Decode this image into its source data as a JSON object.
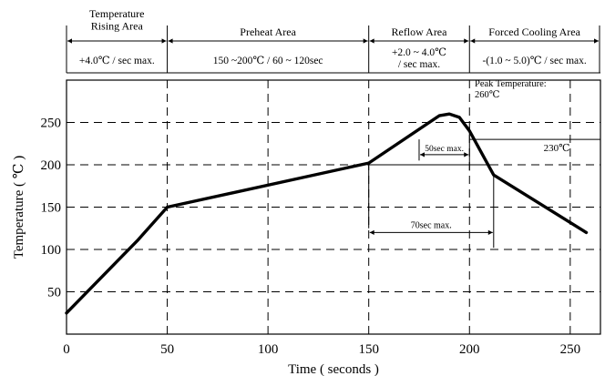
{
  "chart_data": {
    "type": "line",
    "ylabel": "Temperature ( ℃ )",
    "xlabel": "Time ( seconds )",
    "xlim": [
      0,
      265
    ],
    "ylim": [
      0,
      300
    ],
    "grid": true,
    "xticks": [
      0,
      50,
      100,
      150,
      200,
      250
    ],
    "yticks": [
      50,
      100,
      150,
      200,
      250
    ],
    "series": [
      {
        "values": [
          {
            "x": 0,
            "y": 25
          },
          {
            "x": 35,
            "y": 110
          },
          {
            "x": 50,
            "y": 150
          },
          {
            "x": 150,
            "y": 202
          },
          {
            "x": 185,
            "y": 258
          },
          {
            "x": 190,
            "y": 260
          },
          {
            "x": 195,
            "y": 256
          },
          {
            "x": 200,
            "y": 240
          },
          {
            "x": 212,
            "y": 188
          },
          {
            "x": 258,
            "y": 120
          }
        ]
      }
    ],
    "zones": [
      {
        "title": "Temperature\nRising Area",
        "rate": "+4.0℃ / sec max.",
        "x_start": 0,
        "x_end": 50
      },
      {
        "title": "Preheat Area",
        "rate": "150 ~200℃ / 60 ~ 120sec",
        "x_start": 50,
        "x_end": 150
      },
      {
        "title": "Reflow Area",
        "rate": "+2.0 ~ 4.0℃\n/ sec max.",
        "x_start": 150,
        "x_end": 200
      },
      {
        "title": "Forced Cooling Area",
        "rate": "-(1.0 ~ 5.0)℃ / sec max.",
        "x_start": 200,
        "x_end": 265
      }
    ],
    "annotations": {
      "peak": {
        "text": "Peak Temperature:\n260℃",
        "x": 190,
        "y": 260
      },
      "temp_230": {
        "text": "230℃",
        "y": 230
      },
      "hold_230": {
        "text": "50sec max.",
        "x_start": 175,
        "x_end": 200,
        "y": 230
      },
      "hold_200": {
        "text": "70sec max.",
        "x_start": 150,
        "x_end": 212,
        "y": 200
      }
    }
  }
}
